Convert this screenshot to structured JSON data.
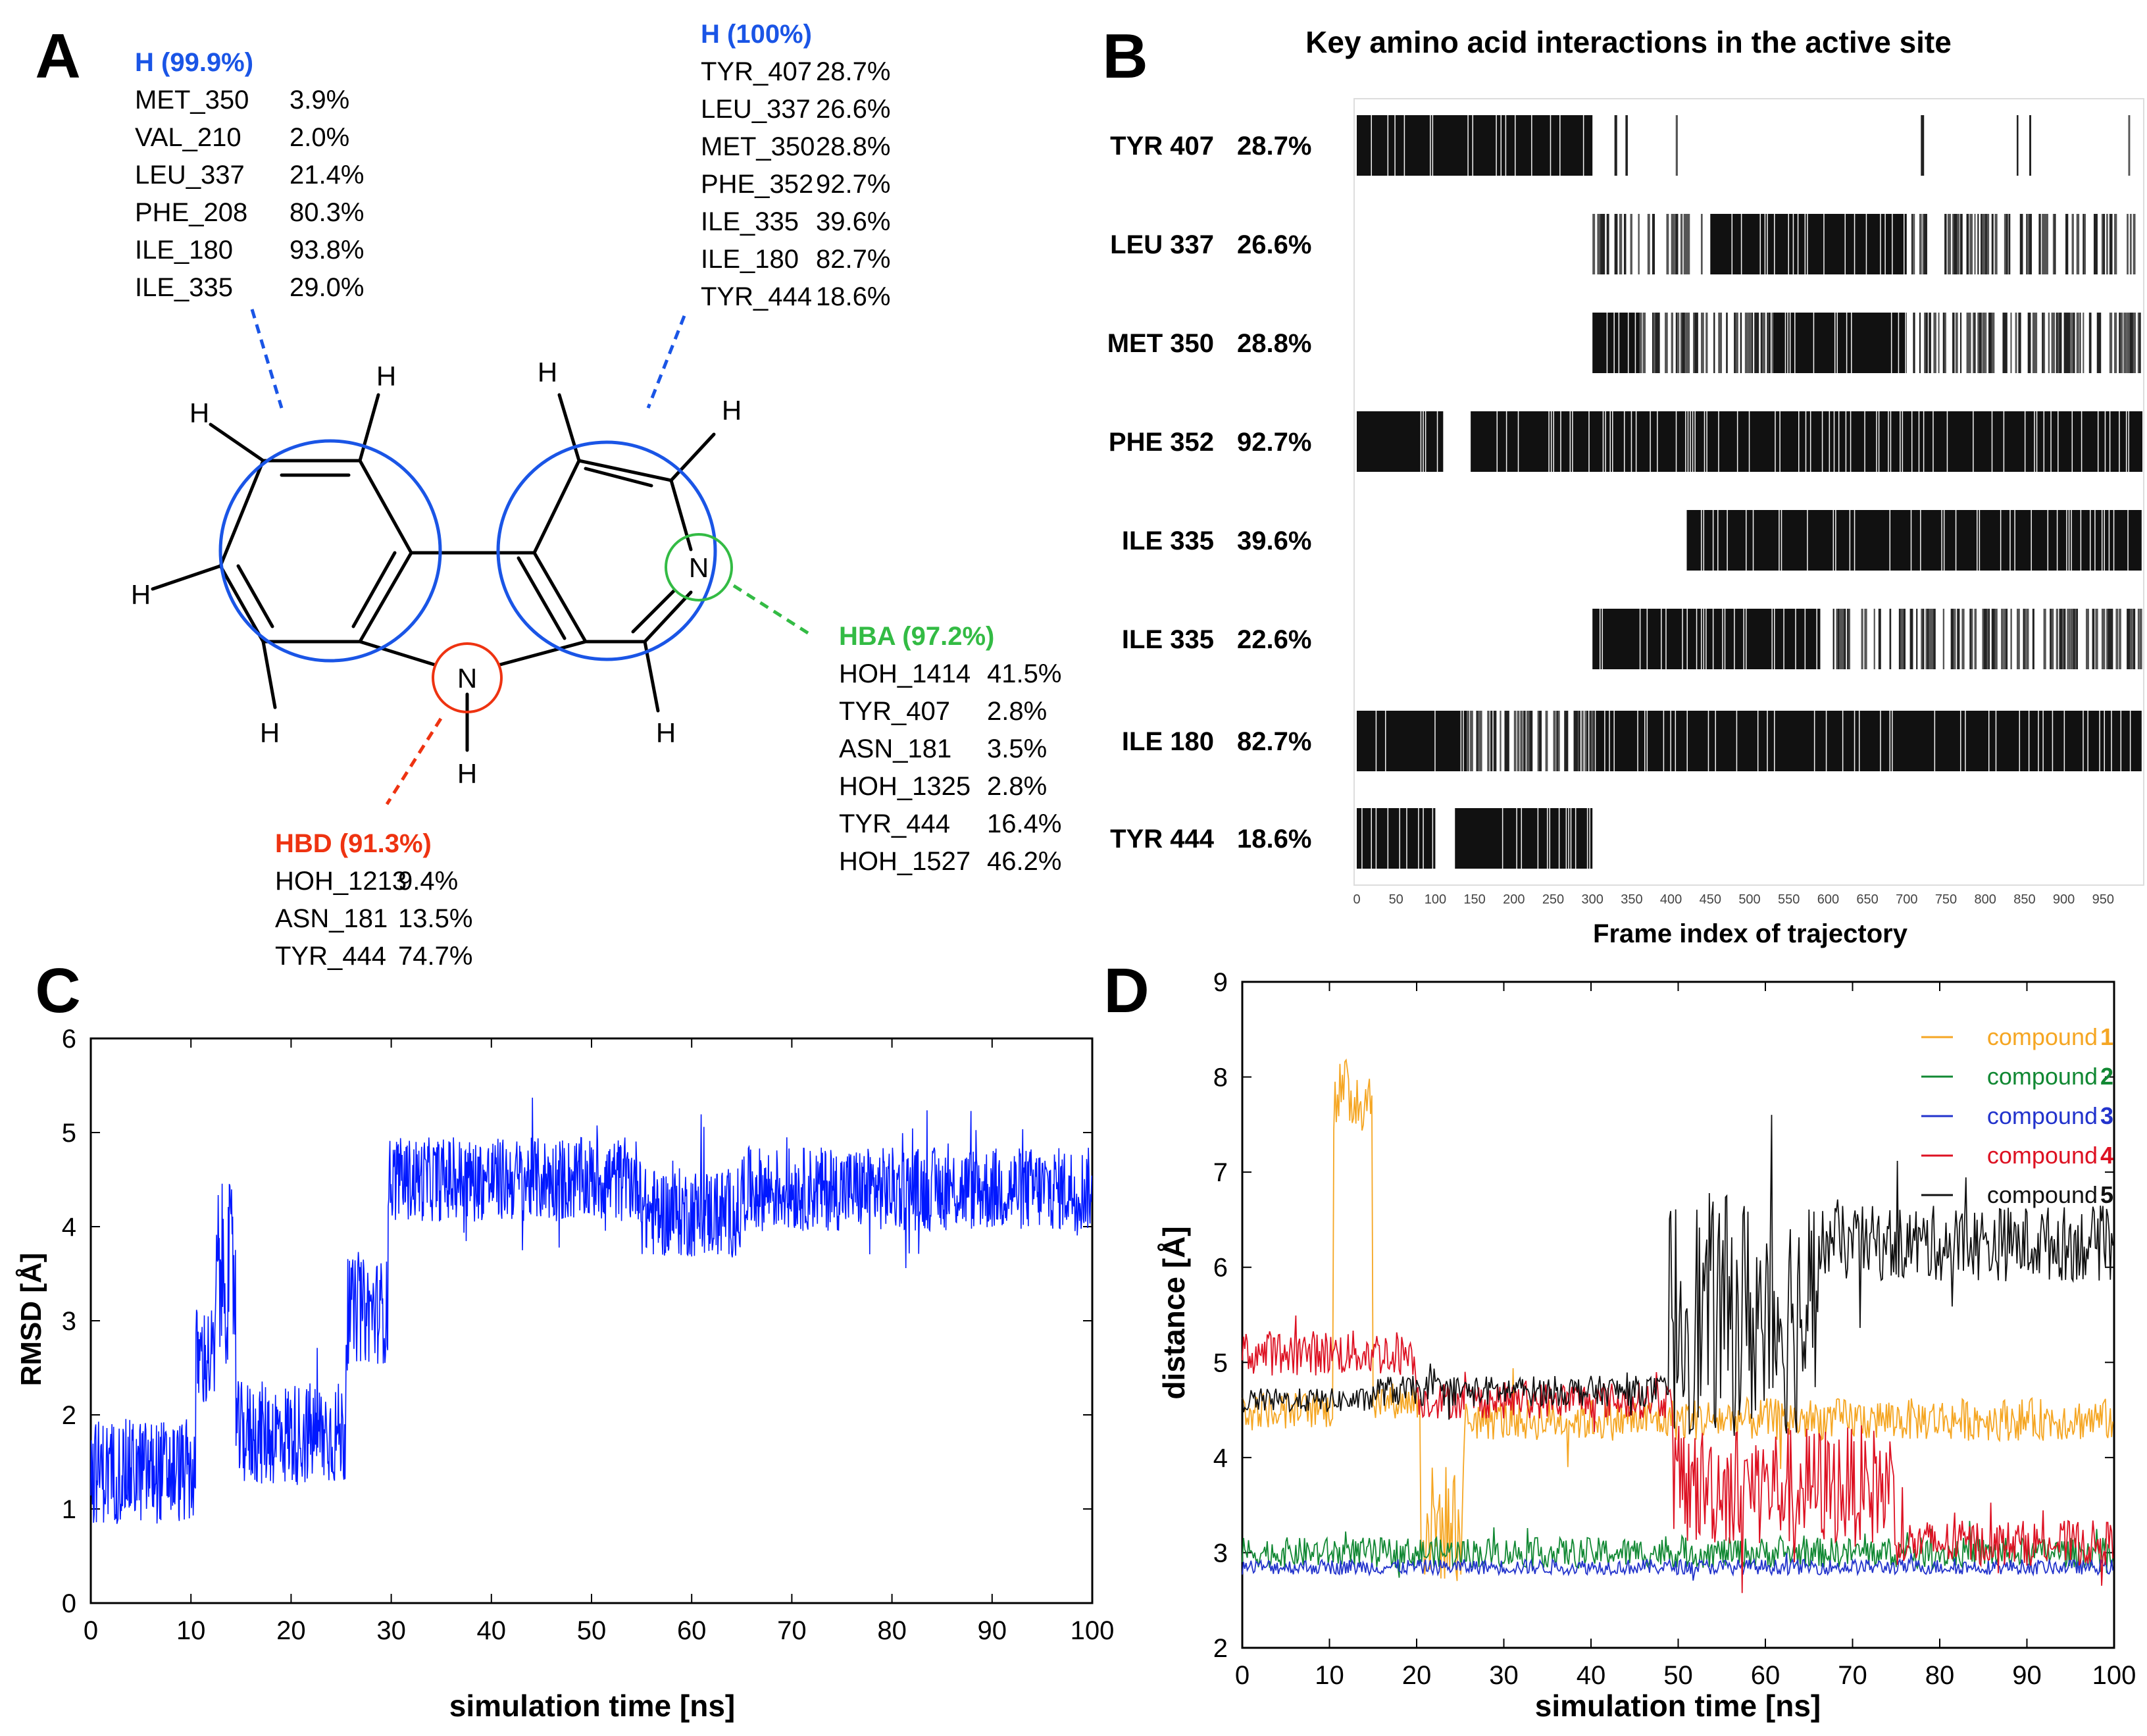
{
  "panels": {
    "a": "A",
    "b": "B",
    "c": "C",
    "d": "D"
  },
  "colors": {
    "blue": "#1a55e6",
    "red": "#ee3311",
    "green": "#33bb44",
    "rmsd": "#0018ff",
    "c1": "#f5a623",
    "c2": "#118833",
    "c3": "#2233cc",
    "c4": "#dd1122",
    "c5": "#111111"
  },
  "molecule": {
    "atom_H": "H",
    "atom_N": "N",
    "groups": [
      {
        "title": "H (99.9%)",
        "color": "blue",
        "rows": [
          [
            "MET_350",
            "3.9%"
          ],
          [
            "VAL_210",
            "2.0%"
          ],
          [
            "LEU_337",
            "21.4%"
          ],
          [
            "PHE_208",
            "80.3%"
          ],
          [
            "ILE_180",
            "93.8%"
          ],
          [
            "ILE_335",
            "29.0%"
          ]
        ]
      },
      {
        "title": "H (100%)",
        "color": "blue",
        "rows": [
          [
            "TYR_407",
            "28.7%"
          ],
          [
            "LEU_337",
            "26.6%"
          ],
          [
            "MET_350",
            "28.8%"
          ],
          [
            "PHE_352",
            "92.7%"
          ],
          [
            "ILE_335",
            "39.6%"
          ],
          [
            "ILE_180",
            "82.7%"
          ],
          [
            "TYR_444",
            "18.6%"
          ]
        ]
      },
      {
        "title": "HBA (97.2%)",
        "color": "green",
        "rows": [
          [
            "HOH_1414",
            "41.5%"
          ],
          [
            "TYR_407",
            "2.8%"
          ],
          [
            "ASN_181",
            "3.5%"
          ],
          [
            "HOH_1325",
            "2.8%"
          ],
          [
            "TYR_444",
            "16.4%"
          ],
          [
            "HOH_1527",
            "46.2%"
          ]
        ]
      },
      {
        "title": "HBD (91.3%)",
        "color": "red",
        "rows": [
          [
            "HOH_1213",
            "9.4%"
          ],
          [
            "ASN_181",
            "13.5%"
          ],
          [
            "TYR_444",
            "74.7%"
          ]
        ]
      }
    ]
  },
  "chart_data": [
    {
      "type": "heatmap",
      "title": "Key amino acid interactions in the active site",
      "xlabel": "Frame index of trajectory",
      "xlim": [
        0,
        999
      ],
      "xticks": [
        0,
        50,
        100,
        150,
        200,
        250,
        300,
        350,
        400,
        450,
        500,
        550,
        600,
        650,
        700,
        750,
        800,
        850,
        900,
        950
      ],
      "rows": [
        {
          "name": "TYR 407",
          "pct": "28.7%",
          "dense": [
            [
              0,
              300
            ]
          ],
          "sparse": [
            [
              300,
              1000
            ]
          ],
          "sparse_density": 0.02
        },
        {
          "name": "LEU 337",
          "pct": "26.6%",
          "dense": [
            [
              450,
              700
            ]
          ],
          "sparse": [
            [
              300,
              450
            ],
            [
              700,
              1000
            ]
          ],
          "sparse_density": 0.3
        },
        {
          "name": "MET 350",
          "pct": "28.8%",
          "dense": [
            [
              300,
              360
            ],
            [
              530,
              700
            ]
          ],
          "sparse": [
            [
              360,
              530
            ],
            [
              700,
              1000
            ]
          ],
          "sparse_density": 0.4
        },
        {
          "name": "PHE 352",
          "pct": "92.7%",
          "dense": [
            [
              0,
              110
            ],
            [
              145,
              1000
            ]
          ],
          "sparse": [],
          "sparse_density": 0
        },
        {
          "name": "ILE 335",
          "pct": "39.6%",
          "dense": [
            [
              420,
              1000
            ]
          ],
          "sparse": [],
          "sparse_density": 0
        },
        {
          "name": "ILE 335",
          "pct": "22.6%",
          "dense": [
            [
              300,
              590
            ]
          ],
          "sparse": [
            [
              590,
              1000
            ]
          ],
          "sparse_density": 0.4
        },
        {
          "name": "ILE 180",
          "pct": "82.7%",
          "dense": [
            [
              0,
              140
            ],
            [
              300,
              1000
            ]
          ],
          "sparse": [
            [
              140,
              300
            ]
          ],
          "sparse_density": 0.5
        },
        {
          "name": "TYR 444",
          "pct": "18.6%",
          "dense": [
            [
              0,
              100
            ],
            [
              125,
              300
            ]
          ],
          "sparse": [],
          "sparse_density": 0
        }
      ]
    },
    {
      "type": "line",
      "xlabel": "simulation time [ns]",
      "ylabel": "RMSD [Å]",
      "xlim": [
        0,
        100
      ],
      "ylim": [
        0,
        6
      ],
      "xticks": [
        0,
        10,
        20,
        30,
        40,
        50,
        60,
        70,
        80,
        90,
        100
      ],
      "yticks": [
        0,
        1,
        2,
        3,
        4,
        5,
        6
      ],
      "series": [
        {
          "name": "RMSD",
          "color": "rmsd",
          "segments": [
            {
              "t0": 0,
              "t1": 10.5,
              "mean": 1.4,
              "noise": 0.35
            },
            {
              "t0": 10.5,
              "t1": 12.5,
              "mean": 2.6,
              "noise": 0.35
            },
            {
              "t0": 12.5,
              "t1": 14.5,
              "mean": 3.5,
              "noise": 0.6
            },
            {
              "t0": 14.5,
              "t1": 25.5,
              "mean": 1.8,
              "noise": 0.35
            },
            {
              "t0": 25.5,
              "t1": 29.7,
              "mean": 3.1,
              "noise": 0.35
            },
            {
              "t0": 29.7,
              "t1": 55,
              "mean": 4.5,
              "noise": 0.28
            },
            {
              "t0": 55,
              "t1": 65,
              "mean": 4.15,
              "noise": 0.3
            },
            {
              "t0": 65,
              "t1": 100,
              "mean": 4.4,
              "noise": 0.28
            }
          ]
        }
      ]
    },
    {
      "type": "line",
      "xlabel": "simulation time [ns]",
      "ylabel": "distance [Å]",
      "xlim": [
        0,
        100
      ],
      "ylim": [
        2,
        9
      ],
      "xticks": [
        0,
        10,
        20,
        30,
        40,
        50,
        60,
        70,
        80,
        90,
        100
      ],
      "yticks": [
        2,
        3,
        4,
        5,
        6,
        7,
        8,
        9
      ],
      "legend_position": "top-right",
      "series": [
        {
          "name": "compound",
          "num": "1",
          "color": "c1",
          "segments": [
            {
              "t0": 0,
              "t1": 10.5,
              "mean": 4.5,
              "noise": 0.12
            },
            {
              "t0": 10.5,
              "t1": 15,
              "mean": 7.8,
              "noise": 0.25
            },
            {
              "t0": 15,
              "t1": 20.5,
              "mean": 4.6,
              "noise": 0.12
            },
            {
              "t0": 20.5,
              "t1": 25.5,
              "mean": 3.3,
              "noise": 0.4
            },
            {
              "t0": 25.5,
              "t1": 100,
              "mean": 4.4,
              "noise": 0.14
            }
          ]
        },
        {
          "name": "compound",
          "num": "2",
          "color": "c2",
          "segments": [
            {
              "t0": 0,
              "t1": 100,
              "mean": 3.0,
              "noise": 0.1
            }
          ]
        },
        {
          "name": "compound",
          "num": "3",
          "color": "c3",
          "segments": [
            {
              "t0": 0,
              "t1": 100,
              "mean": 2.85,
              "noise": 0.05
            }
          ]
        },
        {
          "name": "compound",
          "num": "4",
          "color": "c4",
          "segments": [
            {
              "t0": 0,
              "t1": 20,
              "mean": 5.1,
              "noise": 0.15
            },
            {
              "t0": 20,
              "t1": 49.5,
              "mean": 4.6,
              "noise": 0.12
            },
            {
              "t0": 49.5,
              "t1": 75,
              "mean": 3.7,
              "noise": 0.4
            },
            {
              "t0": 75,
              "t1": 100,
              "mean": 3.1,
              "noise": 0.15
            }
          ]
        },
        {
          "name": "compound",
          "num": "5",
          "color": "c5",
          "segments": [
            {
              "t0": 0,
              "t1": 15,
              "mean": 4.6,
              "noise": 0.08
            },
            {
              "t0": 15,
              "t1": 49,
              "mean": 4.7,
              "noise": 0.1
            },
            {
              "t0": 49,
              "t1": 66,
              "mean": 5.5,
              "noise": 0.8
            },
            {
              "t0": 66,
              "t1": 100,
              "mean": 6.25,
              "noise": 0.25
            }
          ]
        }
      ]
    }
  ]
}
